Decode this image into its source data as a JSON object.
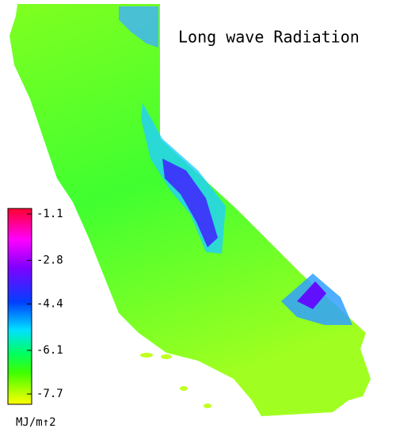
{
  "title": "Long wave Radiation",
  "colorbar": {
    "ticks": [
      -1.1,
      -2.8,
      -4.4,
      -6.1,
      -7.7
    ],
    "label": "MJ/m↑2"
  }
}
